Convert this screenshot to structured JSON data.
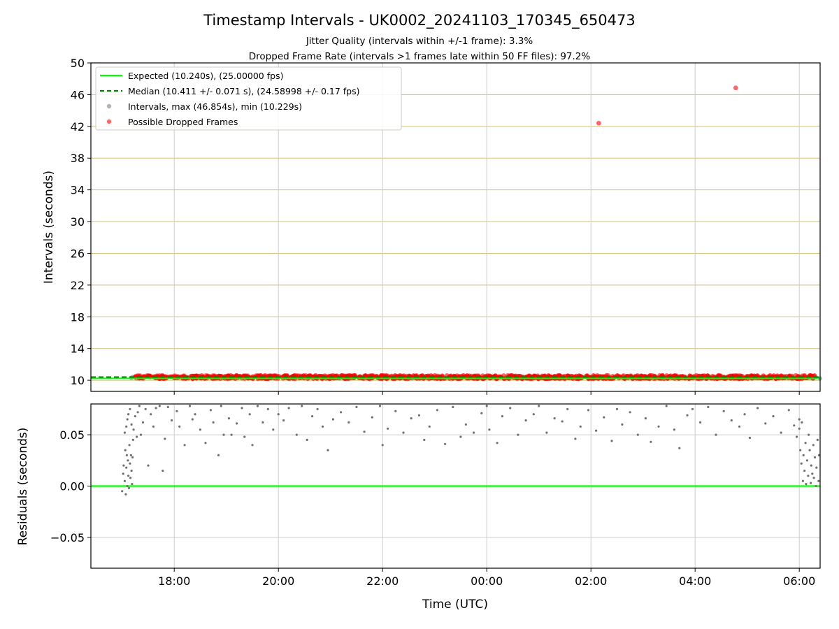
{
  "chart_data": [
    {
      "type": "scatter",
      "title": "Timestamp Intervals - UK0002_20241103_170345_650473",
      "subtitle_lines": [
        "Jitter Quality (intervals within +/-1 frame): 3.3%",
        "Dropped Frame Rate (intervals >1 frames late within 50 FF files): 97.2%"
      ],
      "xlabel": "",
      "ylabel": "Intervals (seconds)",
      "x_unit": "hours since 16:00 UTC",
      "xlim": [
        0.4,
        14.4
      ],
      "ylim": [
        8.6,
        50
      ],
      "yticks": [
        "10",
        "14",
        "18",
        "22",
        "26",
        "30",
        "34",
        "38",
        "42",
        "46",
        "50"
      ],
      "ygrid": true,
      "legend_placement": "top-left",
      "legend": [
        "Expected (10.240s), (25.00000 fps)",
        "Median (10.411 +/- 0.071 s), (24.58998 +/- 0.17 fps)",
        "Intervals, max (46.854s), min (10.229s)",
        "Possible Dropped Frames"
      ],
      "series": [
        {
          "name": "Expected (10.240s), (25.00000 fps)",
          "style": "line",
          "y": 10.24,
          "color": "#00ff00"
        },
        {
          "name": "Median (10.411 +/- 0.071 s), (24.58998 +/- 0.17 fps)",
          "style": "dashed",
          "y": 10.411,
          "color": "#008000"
        },
        {
          "name": "Intervals, max (46.854s), min (10.229s)",
          "style": "dots",
          "color": "#808080",
          "x_range": [
            1.0,
            14.4
          ],
          "y_center": 10.35,
          "y_spread": 0.12
        },
        {
          "name": "Possible Dropped Frames",
          "style": "dots",
          "color": "#ff0000",
          "x_range": [
            1.25,
            14.3
          ],
          "y_center": 10.4,
          "y_spread": 0.22,
          "outliers": [
            {
              "x": 10.15,
              "y": 42.4
            },
            {
              "x": 12.78,
              "y": 46.85
            }
          ]
        }
      ]
    },
    {
      "type": "scatter",
      "xlabel": "Time (UTC)",
      "ylabel": "Residuals (seconds)",
      "x_unit": "hours since 16:00 UTC",
      "xlim": [
        0.4,
        14.4
      ],
      "ylim": [
        -0.08,
        0.08
      ],
      "yticks": [
        {
          "v": 0.05,
          "label": "0.05"
        },
        {
          "v": 0.0,
          "label": "0.00"
        },
        {
          "v": -0.05,
          "label": "−0.05"
        }
      ],
      "xticks": [
        {
          "v": 2,
          "label": "18:00"
        },
        {
          "v": 4,
          "label": "20:00"
        },
        {
          "v": 6,
          "label": "22:00"
        },
        {
          "v": 8,
          "label": "00:00"
        },
        {
          "v": 10,
          "label": "02:00"
        },
        {
          "v": 12,
          "label": "04:00"
        },
        {
          "v": 14,
          "label": "06:00"
        }
      ],
      "grid": true,
      "zero_line_color": "#00ff00",
      "points": [
        [
          1.0,
          -0.005
        ],
        [
          1.02,
          0.012
        ],
        [
          1.03,
          0.02
        ],
        [
          1.05,
          0.005
        ],
        [
          1.06,
          0.035
        ],
        [
          1.07,
          -0.008
        ],
        [
          1.08,
          0.018
        ],
        [
          1.09,
          0.03
        ],
        [
          1.1,
          0.0
        ],
        [
          1.11,
          0.025
        ],
        [
          1.12,
          0.01
        ],
        [
          1.13,
          -0.002
        ],
        [
          1.14,
          0.04
        ],
        [
          1.15,
          0.022
        ],
        [
          1.16,
          0.008
        ],
        [
          1.17,
          0.03
        ],
        [
          1.18,
          0.015
        ],
        [
          1.19,
          0.002
        ],
        [
          1.2,
          0.028
        ],
        [
          1.21,
          0.045
        ],
        [
          1.05,
          0.052
        ],
        [
          1.08,
          0.058
        ],
        [
          1.1,
          0.065
        ],
        [
          1.12,
          0.07
        ],
        [
          1.15,
          0.075
        ],
        [
          1.18,
          0.06
        ],
        [
          1.22,
          0.055
        ],
        [
          1.25,
          0.068
        ],
        [
          1.28,
          0.048
        ],
        [
          1.3,
          0.072
        ],
        [
          1.33,
          0.078
        ],
        [
          1.36,
          0.05
        ],
        [
          1.4,
          0.062
        ],
        [
          1.45,
          0.075
        ],
        [
          1.5,
          0.02
        ],
        [
          1.55,
          0.07
        ],
        [
          1.6,
          0.058
        ],
        [
          1.65,
          0.076
        ],
        [
          1.72,
          0.078
        ],
        [
          1.78,
          0.015
        ],
        [
          1.82,
          0.046
        ],
        [
          1.88,
          0.077
        ],
        [
          1.95,
          0.064
        ],
        [
          2.05,
          0.073
        ],
        [
          2.1,
          0.058
        ],
        [
          2.2,
          0.04
        ],
        [
          2.3,
          0.078
        ],
        [
          2.35,
          0.065
        ],
        [
          2.4,
          0.07
        ],
        [
          2.5,
          0.055
        ],
        [
          2.6,
          0.042
        ],
        [
          2.7,
          0.074
        ],
        [
          2.75,
          0.062
        ],
        [
          2.85,
          0.03
        ],
        [
          2.9,
          0.078
        ],
        [
          2.95,
          0.05
        ],
        [
          3.05,
          0.066
        ],
        [
          3.1,
          0.05
        ],
        [
          3.2,
          0.061
        ],
        [
          3.3,
          0.076
        ],
        [
          3.35,
          0.048
        ],
        [
          3.45,
          0.07
        ],
        [
          3.5,
          0.04
        ],
        [
          3.6,
          0.078
        ],
        [
          3.7,
          0.062
        ],
        [
          3.8,
          0.075
        ],
        [
          3.9,
          0.055
        ],
        [
          4.0,
          0.07
        ],
        [
          4.1,
          0.064
        ],
        [
          4.2,
          0.076
        ],
        [
          4.35,
          0.05
        ],
        [
          4.45,
          0.078
        ],
        [
          4.55,
          0.045
        ],
        [
          4.65,
          0.068
        ],
        [
          4.75,
          0.075
        ],
        [
          4.85,
          0.058
        ],
        [
          4.95,
          0.035
        ],
        [
          5.05,
          0.065
        ],
        [
          5.2,
          0.072
        ],
        [
          5.35,
          0.062
        ],
        [
          5.5,
          0.077
        ],
        [
          5.65,
          0.053
        ],
        [
          5.8,
          0.067
        ],
        [
          5.95,
          0.078
        ],
        [
          6.0,
          0.04
        ],
        [
          6.1,
          0.056
        ],
        [
          6.25,
          0.073
        ],
        [
          6.4,
          0.052
        ],
        [
          6.55,
          0.066
        ],
        [
          6.7,
          0.069
        ],
        [
          6.8,
          0.045
        ],
        [
          6.9,
          0.058
        ],
        [
          7.05,
          0.074
        ],
        [
          7.2,
          0.041
        ],
        [
          7.35,
          0.077
        ],
        [
          7.5,
          0.048
        ],
        [
          7.6,
          0.06
        ],
        [
          7.75,
          0.052
        ],
        [
          7.9,
          0.071
        ],
        [
          8.0,
          0.078
        ],
        [
          8.05,
          0.055
        ],
        [
          8.2,
          0.042
        ],
        [
          8.3,
          0.068
        ],
        [
          8.45,
          0.076
        ],
        [
          8.6,
          0.05
        ],
        [
          8.75,
          0.064
        ],
        [
          8.9,
          0.07
        ],
        [
          9.0,
          0.078
        ],
        [
          9.15,
          0.052
        ],
        [
          9.3,
          0.066
        ],
        [
          9.45,
          0.063
        ],
        [
          9.55,
          0.075
        ],
        [
          9.7,
          0.046
        ],
        [
          9.8,
          0.058
        ],
        [
          9.95,
          0.074
        ],
        [
          10.1,
          0.054
        ],
        [
          10.25,
          0.067
        ],
        [
          10.4,
          0.044
        ],
        [
          10.5,
          0.075
        ],
        [
          10.6,
          0.06
        ],
        [
          10.75,
          0.072
        ],
        [
          10.9,
          0.05
        ],
        [
          11.05,
          0.066
        ],
        [
          11.15,
          0.043
        ],
        [
          11.3,
          0.058
        ],
        [
          11.45,
          0.078
        ],
        [
          11.6,
          0.055
        ],
        [
          11.7,
          0.037
        ],
        [
          11.85,
          0.069
        ],
        [
          11.95,
          0.075
        ],
        [
          12.1,
          0.062
        ],
        [
          12.25,
          0.077
        ],
        [
          12.4,
          0.05
        ],
        [
          12.55,
          0.073
        ],
        [
          12.7,
          0.064
        ],
        [
          12.85,
          0.058
        ],
        [
          12.95,
          0.07
        ],
        [
          13.05,
          0.047
        ],
        [
          13.2,
          0.076
        ],
        [
          13.35,
          0.061
        ],
        [
          13.5,
          0.068
        ],
        [
          13.65,
          0.052
        ],
        [
          13.8,
          0.074
        ],
        [
          13.9,
          0.059
        ],
        [
          14.0,
          0.065
        ],
        [
          13.95,
          0.048
        ],
        [
          14.0,
          0.056
        ],
        [
          14.02,
          0.035
        ],
        [
          14.04,
          0.022
        ],
        [
          14.05,
          0.062
        ],
        [
          14.07,
          0.005
        ],
        [
          14.08,
          0.03
        ],
        [
          14.1,
          0.015
        ],
        [
          14.12,
          0.042
        ],
        [
          14.13,
          0.002
        ],
        [
          14.15,
          0.025
        ],
        [
          14.17,
          0.01
        ],
        [
          14.18,
          0.05
        ],
        [
          14.2,
          0.035
        ],
        [
          14.22,
          0.003
        ],
        [
          14.23,
          0.02
        ],
        [
          14.25,
          0.012
        ],
        [
          14.27,
          0.04
        ],
        [
          14.28,
          0.008
        ],
        [
          14.3,
          0.028
        ],
        [
          14.32,
          0.0
        ],
        [
          14.33,
          0.018
        ],
        [
          14.35,
          0.045
        ],
        [
          14.37,
          0.005
        ],
        [
          14.38,
          0.03
        ]
      ]
    }
  ]
}
